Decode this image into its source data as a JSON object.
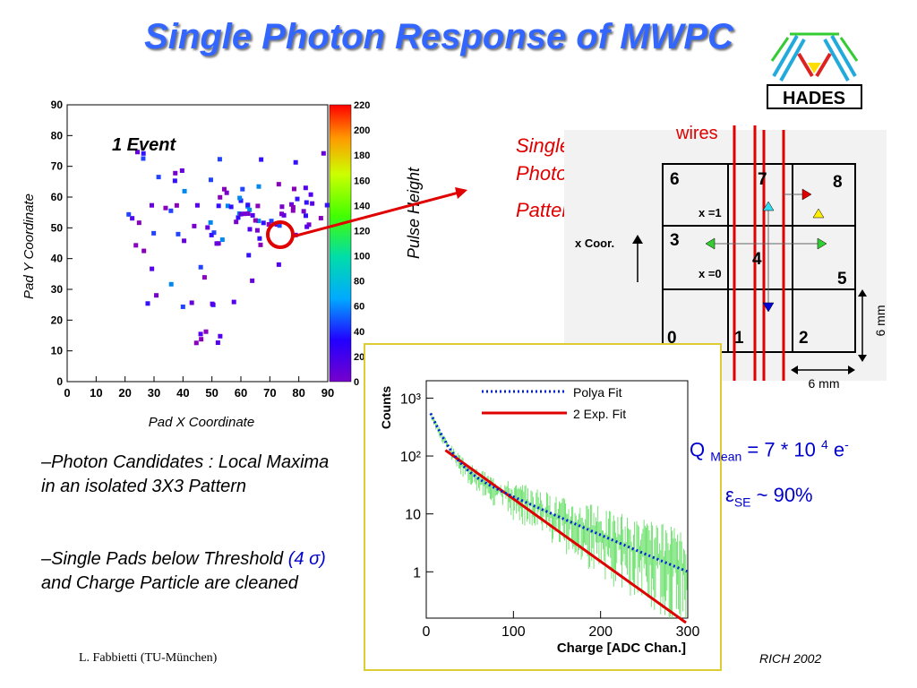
{
  "title": "Single Photon Response of MWPC",
  "logo": {
    "text": "HADES",
    "icon": "hades-logo-icon"
  },
  "event_map": {
    "annotation": "1 Event",
    "x_label": "Pad X Coordinate",
    "y_label": "Pad Y Coordinate",
    "x_ticks": [
      "0",
      "10",
      "20",
      "30",
      "40",
      "50",
      "60",
      "70",
      "80",
      "90"
    ],
    "y_ticks": [
      "0",
      "10",
      "20",
      "30",
      "40",
      "50",
      "60",
      "70",
      "80",
      "90"
    ],
    "colorbar_label": "Pulse Height",
    "colorbar_ticks": [
      "0",
      "20",
      "40",
      "60",
      "80",
      "100",
      "120",
      "140",
      "160",
      "180",
      "200",
      "220"
    ]
  },
  "single_photon_label": {
    "line1": "Single",
    "line2": "Photon",
    "line3": "Pattern"
  },
  "pad_diagram": {
    "wires_label": "wires",
    "x_coor_label": "x Coor.",
    "x1_label": "x =1",
    "x0_label": "x =0",
    "pad_numbers": [
      "0",
      "1",
      "2",
      "3",
      "4",
      "5",
      "6",
      "7",
      "8"
    ],
    "dim_vertical": "6 mm",
    "dim_horizontal": "6 mm"
  },
  "bullets": [
    {
      "dash": "–",
      "text": "Photon Candidates : Local Maxima in an isolated 3X3 Pattern"
    },
    {
      "dash": "–",
      "text_before": "Single Pads below Threshold",
      "highlight": "(4 σ)",
      "text_after": "and Charge Particle are cleaned"
    }
  ],
  "charge_plot": {
    "legend": [
      "Polya Fit",
      "2 Exp. Fit"
    ],
    "y_label": "Counts",
    "x_label": "Charge [ADC Chan.]",
    "x_ticks": [
      "0",
      "100",
      "200",
      "300"
    ],
    "y_ticks": [
      "1",
      "10",
      "10²",
      "10³"
    ]
  },
  "results": {
    "q_mean": {
      "q": "Q",
      "sub": "Mean",
      "eq": "= 7 * 10",
      "exp": "4",
      "unit": "e",
      "unit_sup": "-"
    },
    "eff": {
      "sym": "ε",
      "sub": "SE",
      "val": "~ 90%"
    }
  },
  "footer": {
    "left": "L. Fabbietti  (TU-München)",
    "right": "RICH 2002"
  },
  "colors": {
    "title": "#3366ff",
    "red": "#e00000",
    "blue": "#0000cc",
    "green": "#33cc33"
  }
}
